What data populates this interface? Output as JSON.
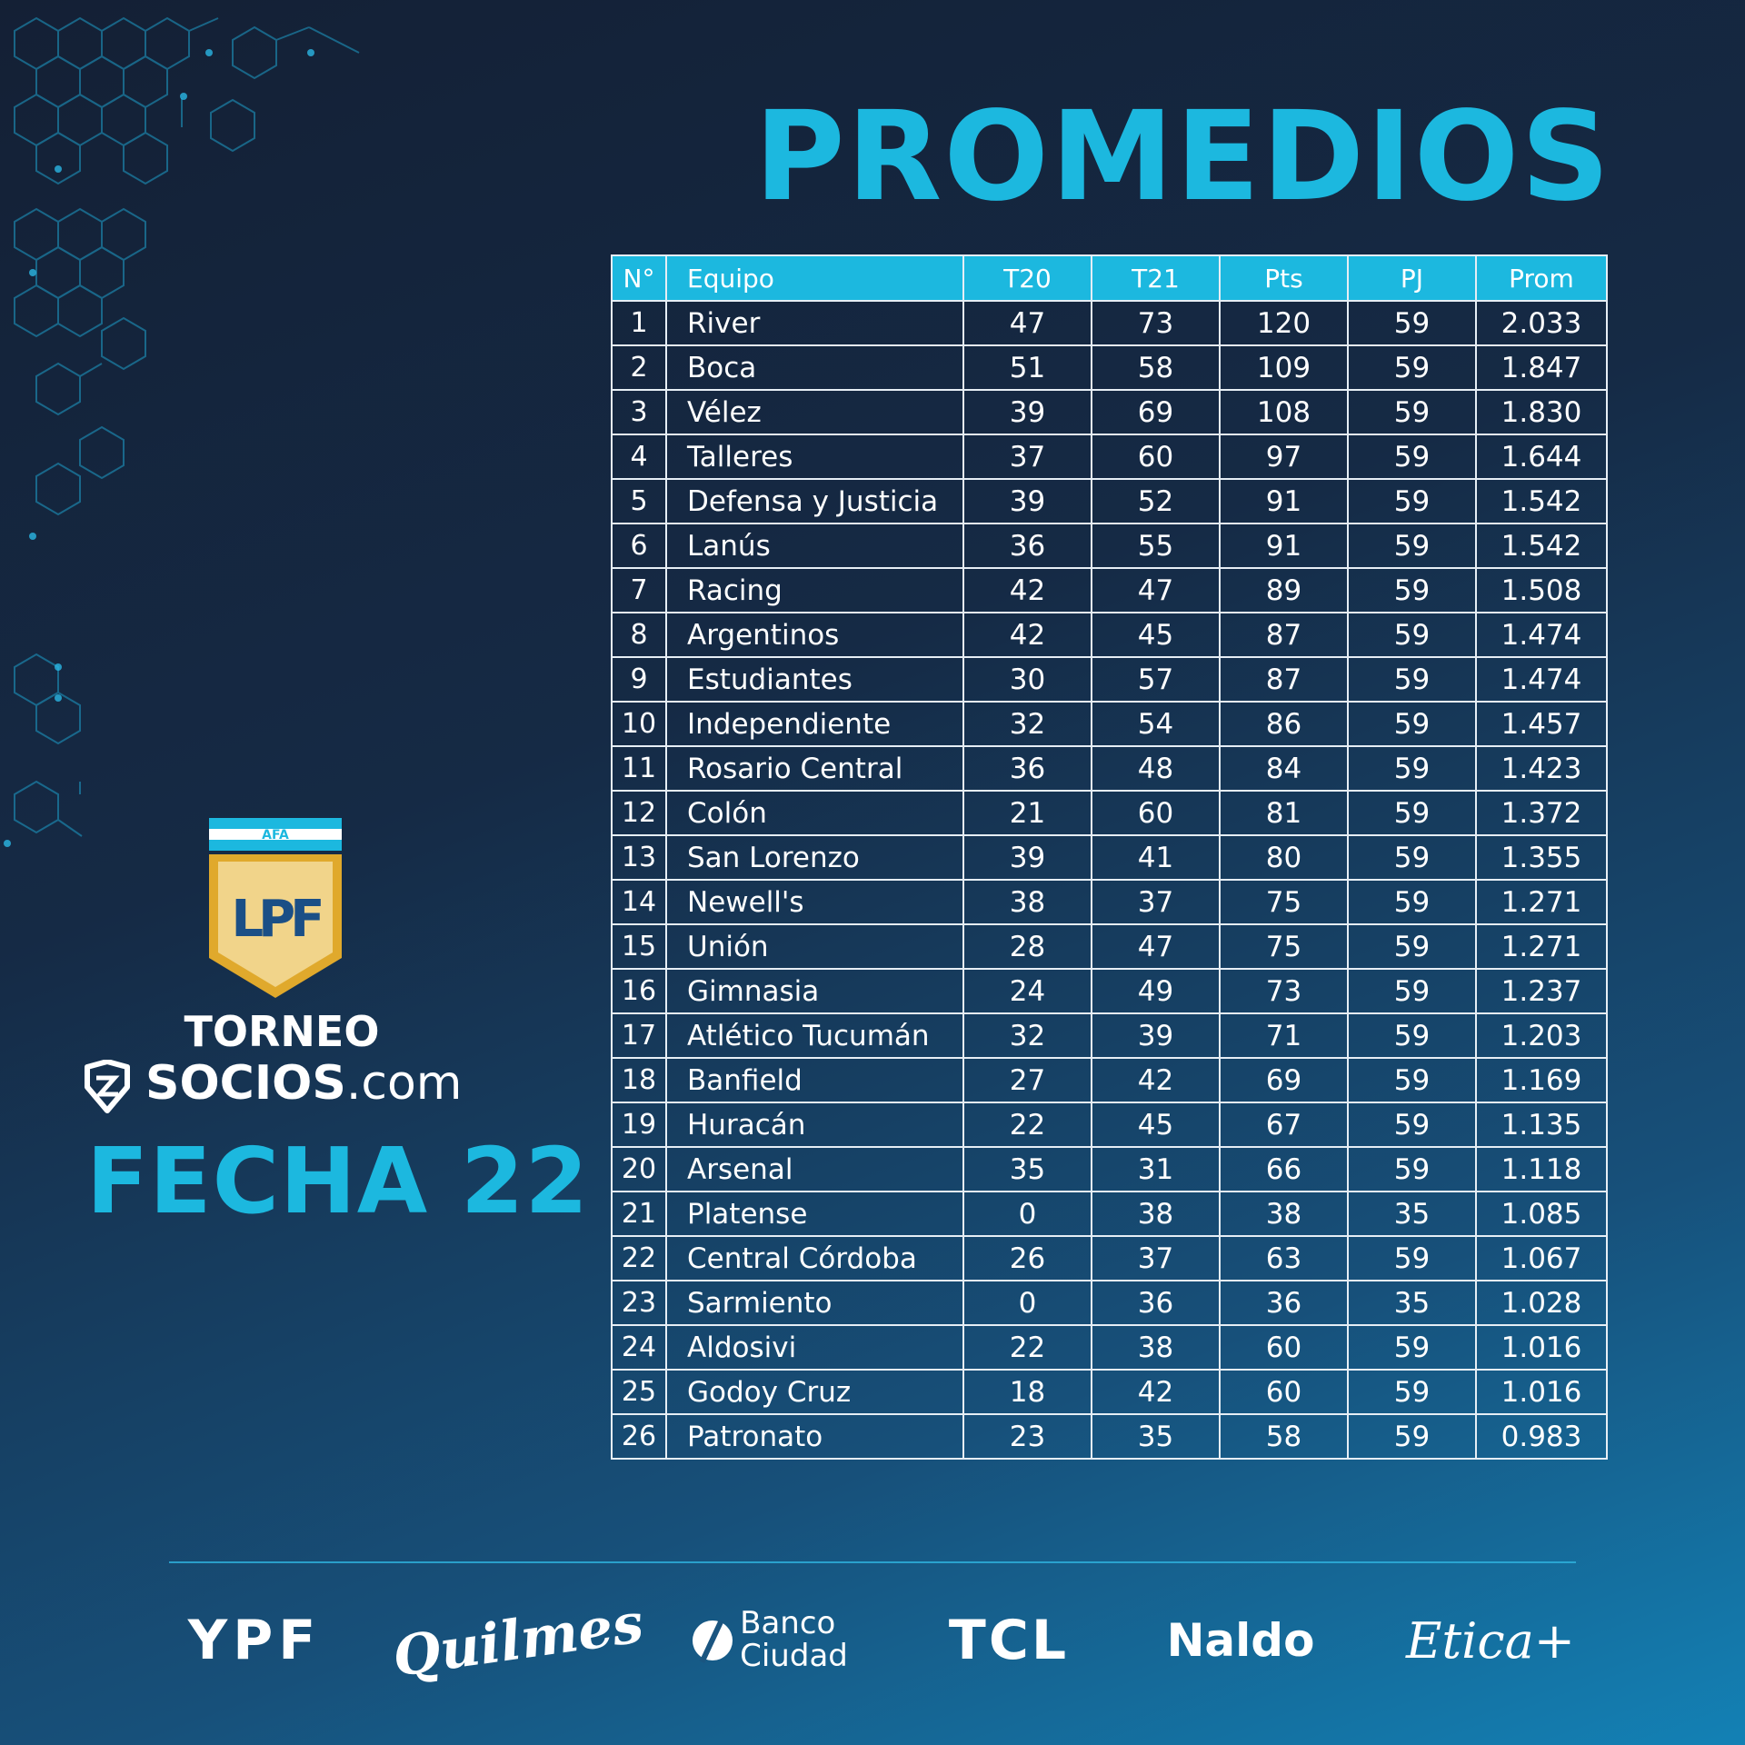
{
  "title": "PROMEDIOS",
  "table": {
    "headers": [
      "N°",
      "Equipo",
      "T20",
      "T21",
      "Pts",
      "PJ",
      "Prom"
    ],
    "rows": [
      [
        "1",
        "River",
        "47",
        "73",
        "120",
        "59",
        "2.033"
      ],
      [
        "2",
        "Boca",
        "51",
        "58",
        "109",
        "59",
        "1.847"
      ],
      [
        "3",
        "Vélez",
        "39",
        "69",
        "108",
        "59",
        "1.830"
      ],
      [
        "4",
        "Talleres",
        "37",
        "60",
        "97",
        "59",
        "1.644"
      ],
      [
        "5",
        "Defensa y Justicia",
        "39",
        "52",
        "91",
        "59",
        "1.542"
      ],
      [
        "6",
        "Lanús",
        "36",
        "55",
        "91",
        "59",
        "1.542"
      ],
      [
        "7",
        "Racing",
        "42",
        "47",
        "89",
        "59",
        "1.508"
      ],
      [
        "8",
        "Argentinos",
        "42",
        "45",
        "87",
        "59",
        "1.474"
      ],
      [
        "9",
        "Estudiantes",
        "30",
        "57",
        "87",
        "59",
        "1.474"
      ],
      [
        "10",
        "Independiente",
        "32",
        "54",
        "86",
        "59",
        "1.457"
      ],
      [
        "11",
        "Rosario Central",
        "36",
        "48",
        "84",
        "59",
        "1.423"
      ],
      [
        "12",
        "Colón",
        "21",
        "60",
        "81",
        "59",
        "1.372"
      ],
      [
        "13",
        "San Lorenzo",
        "39",
        "41",
        "80",
        "59",
        "1.355"
      ],
      [
        "14",
        "Newell's",
        "38",
        "37",
        "75",
        "59",
        "1.271"
      ],
      [
        "15",
        "Unión",
        "28",
        "47",
        "75",
        "59",
        "1.271"
      ],
      [
        "16",
        "Gimnasia",
        "24",
        "49",
        "73",
        "59",
        "1.237"
      ],
      [
        "17",
        "Atlético Tucumán",
        "32",
        "39",
        "71",
        "59",
        "1.203"
      ],
      [
        "18",
        "Banfield",
        "27",
        "42",
        "69",
        "59",
        "1.169"
      ],
      [
        "19",
        "Huracán",
        "22",
        "45",
        "67",
        "59",
        "1.135"
      ],
      [
        "20",
        "Arsenal",
        "35",
        "31",
        "66",
        "59",
        "1.118"
      ],
      [
        "21",
        "Platense",
        "0",
        "38",
        "38",
        "35",
        "1.085"
      ],
      [
        "22",
        "Central Córdoba",
        "26",
        "37",
        "63",
        "59",
        "1.067"
      ],
      [
        "23",
        "Sarmiento",
        "0",
        "36",
        "36",
        "35",
        "1.028"
      ],
      [
        "24",
        "Aldosivi",
        "22",
        "38",
        "60",
        "59",
        "1.016"
      ],
      [
        "25",
        "Godoy Cruz",
        "18",
        "42",
        "60",
        "59",
        "1.016"
      ],
      [
        "26",
        "Patronato",
        "23",
        "35",
        "58",
        "59",
        "0.983"
      ]
    ]
  },
  "logo": {
    "afa_label": "AFA",
    "lpf_monogram": "LPF",
    "torneo": "TORNEO",
    "socios_bold": "SOCIOS",
    "socios_suffix": ".com"
  },
  "fecha": "FECHA 22",
  "sponsors": {
    "ypf": "YPF",
    "quilmes": "Quilmes",
    "banco_line1": "Banco",
    "banco_line2": "Ciudad",
    "tcl": "TCL",
    "naldo": "Naldo",
    "etica": "Etica+"
  },
  "colors": {
    "accent": "#1cb8df",
    "background_dark": "#142035",
    "background_light": "#1381b5",
    "shield_gold": "#e0a92c",
    "shield_blue": "#1b4f86"
  },
  "icons": [
    "hexagon-pattern-decoration",
    "afa-lpf-shield-logo",
    "socios-shield-icon",
    "banco-ciudad-icon"
  ]
}
